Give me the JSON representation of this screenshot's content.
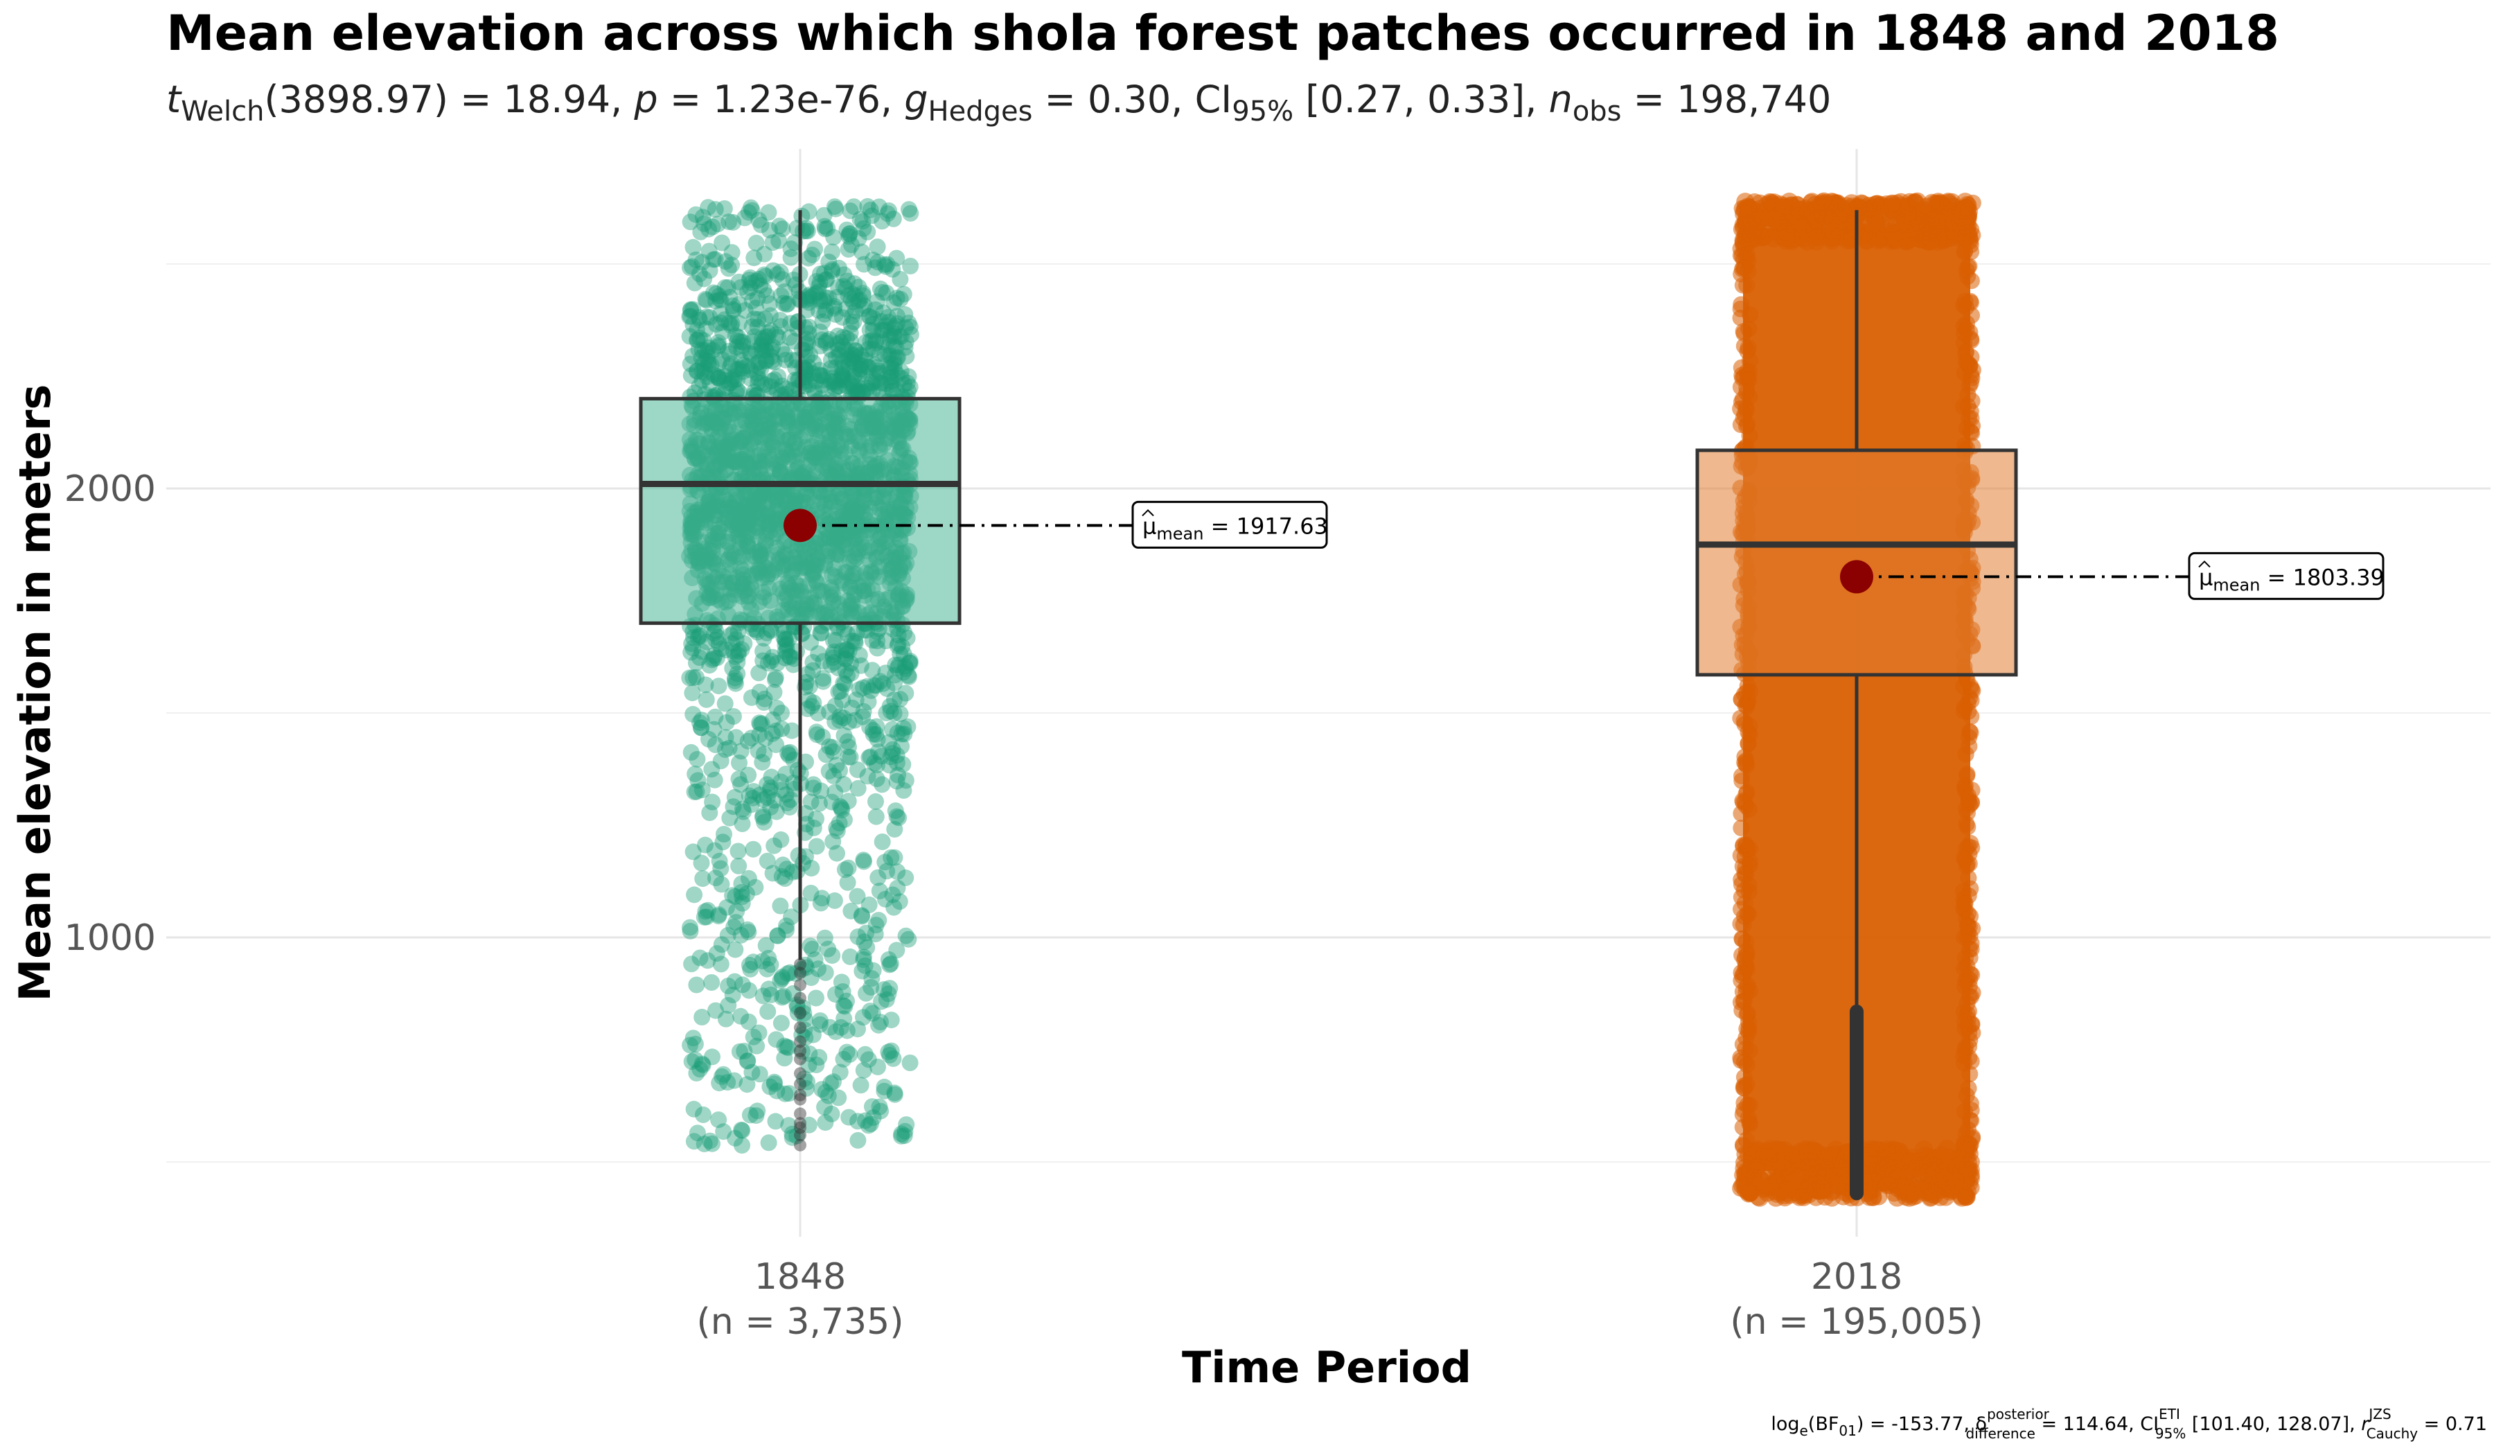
{
  "chart_data": {
    "type": "box",
    "title": "Mean elevation across which shola forest patches occurred in 1848 and 2018",
    "subtitle": {
      "t_symbol": "t",
      "t_sub": "Welch",
      "t_value": "(3898.97) = 18.94, ",
      "p_symbol": "p",
      "p_value": " = 1.23e-76, ",
      "g_symbol": "g",
      "g_sub": "Hedges",
      "g_value": " = 0.30, CI",
      "ci_sub": "95%",
      "ci_value": " [0.27, 0.33], ",
      "n_symbol": "n",
      "n_sub": "obs",
      "n_value": " = 198,740"
    },
    "xlabel": "Time Period",
    "ylabel": "Mean elevation in meters",
    "yticks": [
      1000,
      2000
    ],
    "ylim": [
      300,
      2800
    ],
    "grid": true,
    "groups": [
      {
        "label": "1848",
        "n_label": "(n = 3,735)",
        "color": "#1B9E77",
        "box_fill": "#4DB697",
        "q1": 1700,
        "median": 2010,
        "q3": 2200,
        "whisker_low": 950,
        "whisker_high": 2620,
        "mean": 1917.63,
        "mean_label": "= 1917.63",
        "points_min": 530,
        "points_max": 2630,
        "density": "sparse"
      },
      {
        "label": "2018",
        "n_label": "(n = 195,005)",
        "color": "#D95F02",
        "box_fill": "#E17E32",
        "q1": 1585,
        "median": 1875,
        "q3": 2085,
        "whisker_low": 840,
        "whisker_high": 2620,
        "mean": 1803.39,
        "mean_label": "= 1803.39",
        "points_min": 420,
        "points_max": 2640,
        "density": "dense"
      }
    ],
    "mean_symbol": "μ",
    "mean_sub": "mean",
    "caption": {
      "log_prefix": "log",
      "log_sub": "e",
      "bf": "(BF",
      "bf_sub": "01",
      "bf_value": ") = -153.77, ",
      "delta": "δ",
      "delta_sup": "posterior",
      "delta_sub": "difference",
      "delta_value": " = 114.64, CI",
      "ci_sup": "ETI",
      "ci_sub": "95%",
      "ci_value": " [101.40, 128.07], ",
      "r_symbol": "r",
      "r_sup": "JZS",
      "r_sub": "Cauchy",
      "r_value": " = 0.71"
    }
  }
}
